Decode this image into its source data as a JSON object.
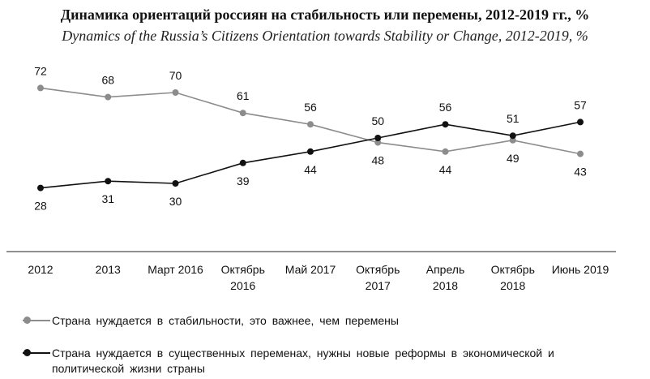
{
  "chart_data": {
    "type": "line",
    "title": "Динамика ориентаций россиян на стабильность или перемены, 2012-2019 гг., %",
    "subtitle": "Dynamics of the Russia’s Citizens Orientation towards Stability or Change, 2012-2019, %",
    "categories": [
      "2012",
      "2013",
      "Март 2016",
      "Октябрь\n2016",
      "Май 2017",
      "Октябрь\n2017",
      "Апрель\n2018",
      "Октябрь\n2018",
      "Июнь 2019"
    ],
    "series": [
      {
        "name": "Страна нуждается в стабильности, это важнее, чем перемены",
        "color": "#8c8c8c",
        "values": [
          72,
          68,
          70,
          61,
          56,
          48,
          44,
          49,
          43
        ]
      },
      {
        "name": "Страна нуждается в существенных переменах, нужны новые реформы в экономической и политической жизни страны",
        "color": "#111111",
        "values": [
          28,
          31,
          30,
          39,
          44,
          50,
          56,
          51,
          57
        ]
      }
    ],
    "ylim": [
      0,
      80
    ]
  }
}
